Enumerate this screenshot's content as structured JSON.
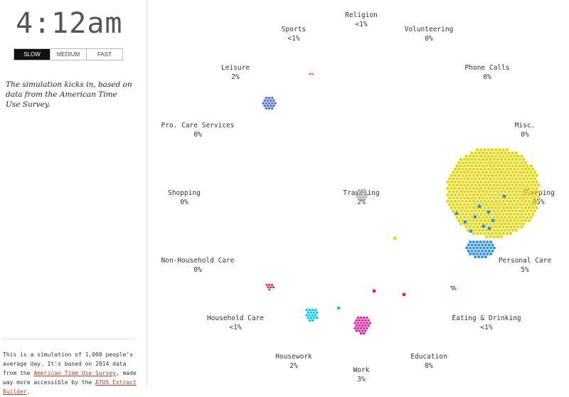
{
  "clock": "4:12am",
  "speed_buttons": [
    {
      "label": "SLOW",
      "active": true
    },
    {
      "label": "MEDIUM",
      "active": false
    },
    {
      "label": "FAST",
      "active": false
    }
  ],
  "intro_text": "The simulation kicks in, based on data from the American Time Use Survey.",
  "footer": {
    "text_1": "This is a simulation of 1,000 people's average day. It's based on 2014 data from the ",
    "link_1": "American Time Use Survey",
    "text_2": ", made way more accessible by the ",
    "link_2": "ATUS Extract Builder",
    "text_3": "."
  },
  "activities": [
    {
      "name": "Religion",
      "pct": "<1%"
    },
    {
      "name": "Volunteering",
      "pct": "0%"
    },
    {
      "name": "Phone Calls",
      "pct": "0%"
    },
    {
      "name": "Misc.",
      "pct": "0%"
    },
    {
      "name": "Sleeping",
      "pct": "85%"
    },
    {
      "name": "Personal Care",
      "pct": "5%"
    },
    {
      "name": "Eating & Drinking",
      "pct": "<1%"
    },
    {
      "name": "Education",
      "pct": "0%"
    },
    {
      "name": "Work",
      "pct": "3%"
    },
    {
      "name": "Housework",
      "pct": "2%"
    },
    {
      "name": "Household Care",
      "pct": "<1%"
    },
    {
      "name": "Non-Household Care",
      "pct": "0%"
    },
    {
      "name": "Shopping",
      "pct": "0%"
    },
    {
      "name": "Pro. Care Services",
      "pct": "0%"
    },
    {
      "name": "Leisure",
      "pct": "2%"
    },
    {
      "name": "Sports",
      "pct": "<1%"
    },
    {
      "name": "Traveling",
      "pct": "2%"
    }
  ],
  "colors": {
    "sleeping": "#e6d600",
    "personal_care": "#2f8ee8",
    "work": "#e0239c",
    "housework": "#15c4e6",
    "leisure": "#4a6fe3",
    "sports": "#e070d8",
    "traveling": "#aaaaaa",
    "household_care": "#e0305a",
    "eating": "#44b533",
    "misc_magenta": "#d81a7a",
    "active_button": "#111111",
    "link": "#b04030"
  }
}
